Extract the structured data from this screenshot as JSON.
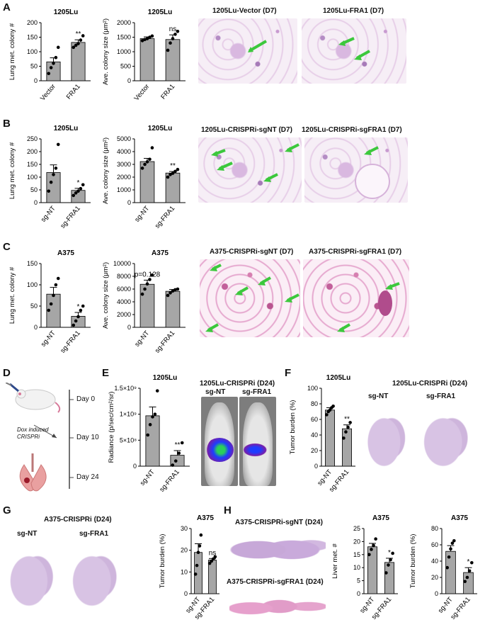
{
  "panels": {
    "A": "A",
    "B": "B",
    "C": "C",
    "D": "D",
    "E": "E",
    "F": "F",
    "G": "G",
    "H": "H"
  },
  "micrographs": {
    "a1": "1205Lu-Vector (D7)",
    "a2": "1205Lu-FRA1 (D7)",
    "b1": "1205Lu-CRISPRi-sgNT (D7)",
    "b2": "1205Lu-CRISPRi-sgFRA1 (D7)",
    "c1": "A375-CRISPRi-sgNT (D7)",
    "c2": "A375-CRISPRi-sgFRA1 (D7)",
    "e_title": "1205Lu-CRISPRi (D24)",
    "e_left": "sg-NT",
    "e_right": "sg-FRA1",
    "f_title": "1205Lu-CRISPRi (D24)",
    "f_left": "sg-NT",
    "f_right": "sg-FRA1",
    "g_title": "A375-CRISPRi (D24)",
    "g_left": "sg-NT",
    "g_right": "sg-FRA1",
    "h_top": "A375-CRISPRi-sgNT (D24)",
    "h_bottom": "A375-CRISPRi-sgFRA1 (D24)"
  },
  "timeline": {
    "day0": "Day 0",
    "day10": "Day 10",
    "day24": "Day 24",
    "note_line1": "Dox induced",
    "note_line2": "CRISPRi"
  },
  "colors": {
    "bar": "#a6a6a6",
    "arrow": "#3cc83c",
    "ivis_hot": "#2ad05a",
    "ivis_mid": "#1e3cff",
    "ivis_low": "#7a1ea8"
  },
  "chart_data": [
    {
      "id": "A1",
      "type": "bar",
      "title": "1205Lu",
      "ylabel": "Lung met. colony #",
      "categories": [
        "Vector",
        "FRA1"
      ],
      "values": [
        65,
        132
      ],
      "errors": [
        14,
        9
      ],
      "points": [
        [
          25,
          45,
          60,
          80,
          115
        ],
        [
          115,
          122,
          128,
          140,
          155
        ]
      ],
      "ylim": [
        0,
        200
      ],
      "yticks": [
        "0",
        "50",
        "100",
        "150",
        "200"
      ],
      "sig": [
        "",
        "**"
      ]
    },
    {
      "id": "A2",
      "type": "bar",
      "title": "1205Lu",
      "ylabel": "Ave. colony size (μm²)",
      "categories": [
        "Vector",
        "FRA1"
      ],
      "values": [
        1450,
        1420
      ],
      "errors": [
        60,
        160
      ],
      "points": [
        [
          1380,
          1420,
          1450,
          1500,
          1540
        ],
        [
          1050,
          1300,
          1450,
          1600,
          1700
        ]
      ],
      "ylim": [
        0,
        2000
      ],
      "yticks": [
        "0",
        "500",
        "1000",
        "1500",
        "2000"
      ],
      "sig": [
        "",
        "ns"
      ]
    },
    {
      "id": "B1",
      "type": "bar",
      "title": "1205Lu",
      "ylabel": "Lung met. colony #",
      "categories": [
        "sg-NT",
        "sg-FRA1"
      ],
      "values": [
        118,
        48
      ],
      "errors": [
        30,
        8
      ],
      "points": [
        [
          45,
          80,
          110,
          135,
          228
        ],
        [
          28,
          38,
          45,
          55,
          70
        ]
      ],
      "ylim": [
        0,
        250
      ],
      "yticks": [
        "0",
        "50",
        "100",
        "150",
        "200",
        "250"
      ],
      "sig": [
        "",
        "*"
      ]
    },
    {
      "id": "B2",
      "type": "bar",
      "title": "1205Lu",
      "ylabel": "Ave. colony size (μm²)",
      "categories": [
        "sg-NT",
        "sg-FRA1"
      ],
      "values": [
        3220,
        2320
      ],
      "errors": [
        250,
        120
      ],
      "points": [
        [
          2700,
          3000,
          3200,
          3400,
          4300
        ],
        [
          2000,
          2200,
          2300,
          2450,
          2600
        ]
      ],
      "ylim": [
        0,
        5000
      ],
      "yticks": [
        "0",
        "1000",
        "2000",
        "3000",
        "4000",
        "5000"
      ],
      "sig": [
        "",
        "**"
      ]
    },
    {
      "id": "C1",
      "type": "bar",
      "title": "A375",
      "ylabel": "Lung met. colony #",
      "categories": [
        "sg-NT",
        "sg-FRA1"
      ],
      "values": [
        78,
        26
      ],
      "errors": [
        16,
        9
      ],
      "points": [
        [
          40,
          55,
          75,
          100,
          115
        ],
        [
          5,
          15,
          25,
          40,
          50
        ]
      ],
      "ylim": [
        0,
        150
      ],
      "yticks": [
        "0",
        "50",
        "100",
        "150"
      ],
      "sig": [
        "",
        "*"
      ]
    },
    {
      "id": "C2",
      "type": "bar",
      "title": "A375",
      "ylabel": "Ave. colony size (μm²)",
      "categories": [
        "sg-NT",
        "sg-FRA1"
      ],
      "values": [
        6750,
        5650
      ],
      "errors": [
        650,
        280
      ],
      "points": [
        [
          5200,
          6000,
          6800,
          7500,
          8200
        ],
        [
          5000,
          5400,
          5700,
          5900,
          6000
        ]
      ],
      "ylim": [
        0,
        10000
      ],
      "yticks": [
        "0",
        "2000",
        "4000",
        "6000",
        "8000",
        "10000"
      ],
      "sig": [
        "p=0.128",
        ""
      ]
    },
    {
      "id": "E1",
      "type": "bar",
      "title": "1205Lu",
      "ylabel": "Radiance (p/sec/cm²/sr)",
      "categories": [
        "sg-NT",
        "sg-FRA1"
      ],
      "values": [
        970000000,
        210000000
      ],
      "errors": [
        170000000,
        90000000
      ],
      "points": [
        [
          600000000,
          800000000,
          950000000,
          1000000000,
          1450000000
        ],
        [
          20000000,
          100000000,
          250000000,
          450000000
        ]
      ],
      "ylim": [
        0,
        1500000000
      ],
      "yticks": [
        "0",
        "5×10⁸",
        "1×10⁹",
        "1.5×10⁹"
      ],
      "sig": [
        "",
        "**"
      ]
    },
    {
      "id": "F1",
      "type": "bar",
      "title": "1205Lu",
      "ylabel": "Tumor burden (%)",
      "categories": [
        "sg-NT",
        "sg-FRA1"
      ],
      "values": [
        72,
        48
      ],
      "errors": [
        3,
        5
      ],
      "points": [
        [
          66,
          70,
          72,
          75,
          77
        ],
        [
          36,
          44,
          50,
          56
        ]
      ],
      "ylim": [
        0,
        100
      ],
      "yticks": [
        "0",
        "20",
        "40",
        "60",
        "80",
        "100"
      ],
      "sig": [
        "",
        "**"
      ]
    },
    {
      "id": "G1",
      "type": "bar",
      "title": "A375",
      "ylabel": "Tumor burden (%)",
      "categories": [
        "sg-NT",
        "sg-FRA1"
      ],
      "values": [
        19,
        15.5
      ],
      "errors": [
        4,
        0.7
      ],
      "points": [
        [
          9,
          13,
          19,
          22,
          27
        ],
        [
          14,
          15,
          16,
          17
        ]
      ],
      "ylim": [
        0,
        30
      ],
      "yticks": [
        "0",
        "10",
        "20",
        "30"
      ],
      "sig": [
        "",
        "ns"
      ]
    },
    {
      "id": "H1",
      "type": "bar",
      "title": "A375",
      "ylabel": "Liver met. #",
      "categories": [
        "sg-NT",
        "sg-FRA1"
      ],
      "values": [
        18,
        12
      ],
      "errors": [
        1.3,
        1.6
      ],
      "points": [
        [
          15,
          17,
          18.5,
          21
        ],
        [
          8,
          11,
          13,
          15.5
        ]
      ],
      "ylim": [
        0,
        25
      ],
      "yticks": [
        "0",
        "5",
        "10",
        "15",
        "20",
        "25"
      ],
      "sig": [
        "",
        "*"
      ]
    },
    {
      "id": "H2",
      "type": "bar",
      "title": "A375",
      "ylabel": "Tumor burden (%)",
      "categories": [
        "sg-NT",
        "sg-FRA1"
      ],
      "values": [
        52,
        26
      ],
      "errors": [
        7,
        6
      ],
      "points": [
        [
          32,
          45,
          55,
          62,
          65
        ],
        [
          15,
          20,
          28,
          38
        ]
      ],
      "ylim": [
        0,
        80
      ],
      "yticks": [
        "0",
        "20",
        "40",
        "60",
        "80"
      ],
      "sig": [
        "",
        "*"
      ]
    }
  ]
}
